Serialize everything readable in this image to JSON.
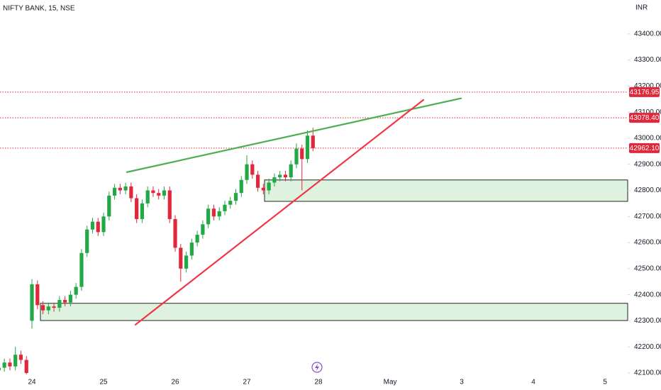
{
  "chart_data": {
    "type": "candlestick",
    "title": "NIFTY BANK, 15, NSE",
    "currency": "INR",
    "categories": [
      null,
      null,
      null,
      null,
      null,
      null,
      "24",
      null,
      null,
      null,
      null,
      null,
      null,
      null,
      null,
      null,
      null,
      null,
      null,
      "25",
      null,
      null,
      null,
      null,
      null,
      null,
      null,
      null,
      null,
      null,
      null,
      null,
      "26",
      null,
      null,
      null,
      null,
      null,
      null,
      null,
      null,
      null,
      null,
      null,
      null,
      "27",
      null,
      null,
      null,
      null,
      null,
      null,
      null,
      null,
      null,
      null,
      null,
      null,
      "28",
      null,
      null,
      null,
      null,
      null,
      null,
      null,
      null,
      null,
      null,
      null,
      null,
      "May",
      null,
      null,
      null,
      null,
      null,
      null,
      null,
      null,
      null,
      null,
      null,
      null,
      "3",
      null,
      null,
      null,
      null,
      null,
      null,
      null,
      null,
      null,
      null,
      null,
      null,
      "4",
      null,
      null,
      null,
      null,
      null,
      null,
      null,
      null,
      null,
      null,
      null,
      null,
      "5",
      null,
      null,
      null,
      null
    ],
    "open": [
      42110,
      42120,
      42140,
      42125,
      42170,
      42150,
      42300,
      42440,
      42360,
      42340,
      42355,
      42350,
      42380,
      42370,
      42400,
      42430,
      42560,
      42650,
      42680,
      42640,
      42700,
      42780,
      42810,
      42800,
      42815,
      42770,
      42690,
      42750,
      42800,
      42790,
      42780,
      42800,
      42690,
      42580,
      42500,
      42550,
      42600,
      42630,
      42670,
      42730,
      42700,
      42720,
      42745,
      42760,
      42790,
      42840,
      42900,
      42860,
      42810,
      42800,
      42830,
      42850,
      42860,
      42850,
      42900,
      42960,
      42920,
      43010,
      null,
      null,
      null,
      null,
      null,
      null,
      null,
      null,
      null,
      null,
      null,
      null,
      null,
      null,
      null,
      null,
      null,
      null,
      null,
      null,
      null,
      null,
      null,
      null,
      null,
      null,
      null,
      null,
      null,
      null,
      null,
      null,
      null,
      null,
      null,
      null,
      null,
      null,
      null,
      null,
      null,
      null,
      null,
      null,
      null,
      null,
      null,
      null,
      null,
      null,
      null,
      null,
      null,
      null,
      null,
      null,
      null
    ],
    "high": [
      42135,
      42155,
      42155,
      42200,
      42185,
      42165,
      42460,
      42455,
      42375,
      42370,
      42370,
      42395,
      42395,
      42415,
      42445,
      42575,
      42665,
      42695,
      42695,
      42715,
      42795,
      42825,
      42825,
      42830,
      42830,
      42785,
      42765,
      42815,
      42815,
      42805,
      42815,
      42815,
      42705,
      42595,
      42565,
      42615,
      42645,
      42685,
      42745,
      42745,
      42735,
      42760,
      42775,
      42805,
      42855,
      42935,
      42915,
      42875,
      42825,
      42845,
      42865,
      42875,
      42875,
      42915,
      42980,
      42975,
      43030,
      43040,
      null,
      null,
      null,
      null,
      null,
      null,
      null,
      null,
      null,
      null,
      null,
      null,
      null,
      null,
      null,
      null,
      null,
      null,
      null,
      null,
      null,
      null,
      null,
      null,
      null,
      null,
      null,
      null,
      null,
      null,
      null,
      null,
      null,
      null,
      null,
      null,
      null,
      null,
      null,
      null,
      null,
      null,
      null,
      null,
      null,
      null,
      null,
      null,
      null,
      null,
      null,
      null,
      null,
      null,
      null,
      null,
      null
    ],
    "low": [
      42095,
      42105,
      42110,
      42110,
      42135,
      42095,
      42270,
      42345,
      42325,
      42325,
      42335,
      42335,
      42355,
      42355,
      42385,
      42415,
      42545,
      42635,
      42625,
      42625,
      42685,
      42765,
      42785,
      42785,
      42755,
      42675,
      42675,
      42735,
      42775,
      42765,
      42765,
      42675,
      42565,
      42450,
      42485,
      42535,
      42585,
      42615,
      42655,
      42685,
      42685,
      42705,
      42730,
      42745,
      42775,
      42825,
      42845,
      42795,
      42785,
      42785,
      42815,
      42835,
      42835,
      42835,
      42885,
      42800,
      42905,
      42950,
      null,
      null,
      null,
      null,
      null,
      null,
      null,
      null,
      null,
      null,
      null,
      null,
      null,
      null,
      null,
      null,
      null,
      null,
      null,
      null,
      null,
      null,
      null,
      null,
      null,
      null,
      null,
      null,
      null,
      null,
      null,
      null,
      null,
      null,
      null,
      null,
      null,
      null,
      null,
      null,
      null,
      null,
      null,
      null,
      null,
      null,
      null,
      null,
      null,
      null,
      null,
      null,
      null,
      null,
      null,
      null,
      null
    ],
    "close": [
      42120,
      42140,
      42125,
      42170,
      42150,
      42100,
      42440,
      42360,
      42340,
      42355,
      42350,
      42380,
      42370,
      42400,
      42430,
      42560,
      42650,
      42680,
      42640,
      42700,
      42780,
      42810,
      42800,
      42815,
      42770,
      42690,
      42750,
      42800,
      42790,
      42780,
      42800,
      42690,
      42580,
      42500,
      42550,
      42600,
      42630,
      42670,
      42730,
      42700,
      42720,
      42745,
      42760,
      42790,
      42840,
      42900,
      42860,
      42810,
      42800,
      42830,
      42850,
      42860,
      42850,
      42900,
      42960,
      42920,
      43010,
      42962.1,
      null,
      null,
      null,
      null,
      null,
      null,
      null,
      null,
      null,
      null,
      null,
      null,
      null,
      null,
      null,
      null,
      null,
      null,
      null,
      null,
      null,
      null,
      null,
      null,
      null,
      null,
      null,
      null,
      null,
      null,
      null,
      null,
      null,
      null,
      null,
      null,
      null,
      null,
      null,
      null,
      null,
      null,
      null,
      null,
      null,
      null,
      null,
      null,
      null,
      null,
      null,
      null,
      null,
      null,
      null,
      null,
      null
    ],
    "up_color": "#22a845",
    "down_color": "#e0283a",
    "ylim": [
      42089,
      43530
    ],
    "yticks": [
      {
        "value": 42100,
        "label": "42100.00"
      },
      {
        "value": 42200,
        "label": "42200.00"
      },
      {
        "value": 42300,
        "label": "42300.00"
      },
      {
        "value": 42400,
        "label": "42400.00"
      },
      {
        "value": 42500,
        "label": "42500.00"
      },
      {
        "value": 42600,
        "label": "42600.00"
      },
      {
        "value": 42700,
        "label": "42700.00"
      },
      {
        "value": 42800,
        "label": "42800.00"
      },
      {
        "value": 42900,
        "label": "42900.00"
      },
      {
        "value": 43000,
        "label": "43000.00"
      },
      {
        "value": 43100,
        "label": "43100.00"
      },
      {
        "value": 43200,
        "label": "43200.00"
      },
      {
        "value": 43300,
        "label": "43300.00"
      },
      {
        "value": 43400,
        "label": "43400.00"
      }
    ],
    "price_lines": [
      {
        "value": 43176.95,
        "label": "43176.95",
        "color": "#e0283a"
      },
      {
        "value": 43078.4,
        "label": "43078.40",
        "color": "#e0283a"
      },
      {
        "value": 42962.1,
        "label": "42962.10",
        "color": "#e0283a"
      }
    ],
    "zones": [
      {
        "from": 42758,
        "to": 42840,
        "color": "#4caf50"
      },
      {
        "from": 42301,
        "to": 42367,
        "color": "#4caf50"
      }
    ],
    "trendlines": [
      {
        "from": 42870,
        "to": 43153,
        "color": "#4caf50"
      },
      {
        "from": 42285,
        "to": 43147,
        "color": "#f23645"
      }
    ]
  }
}
